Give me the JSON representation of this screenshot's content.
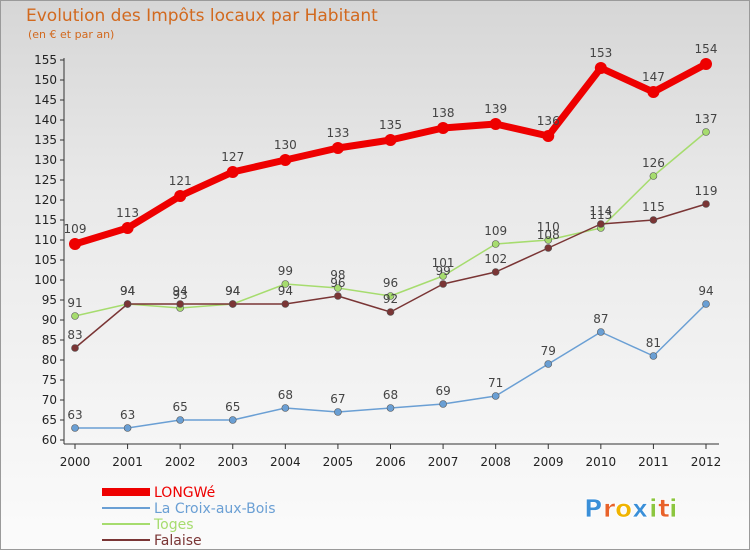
{
  "chart_data": {
    "type": "line",
    "title": "Evolution des Impôts locaux par Habitant",
    "subtitle": "(en € et par an)",
    "x": [
      "2000",
      "2001",
      "2002",
      "2003",
      "2004",
      "2005",
      "2006",
      "2007",
      "2008",
      "2009",
      "2010",
      "2011",
      "2012"
    ],
    "ylim": [
      60,
      155
    ],
    "yticks": [
      60,
      65,
      70,
      75,
      80,
      85,
      90,
      95,
      100,
      105,
      110,
      115,
      120,
      125,
      130,
      135,
      140,
      145,
      150,
      155
    ],
    "grid": false,
    "legend_position": "bottom-left",
    "series": [
      {
        "name": "LONGWé",
        "color": "#ee0000",
        "values": [
          109,
          113,
          121,
          127,
          130,
          133,
          135,
          138,
          139,
          136,
          153,
          147,
          154
        ]
      },
      {
        "name": "La Croix-aux-Bois",
        "color": "#6a9fd4",
        "values": [
          63,
          63,
          65,
          65,
          68,
          67,
          68,
          69,
          71,
          79,
          87,
          81,
          94
        ]
      },
      {
        "name": "Toges",
        "color": "#a6dc6e",
        "values": [
          91,
          94,
          93,
          94,
          99,
          98,
          96,
          101,
          109,
          110,
          113,
          126,
          137
        ]
      },
      {
        "name": "Falaise",
        "color": "#7a3535",
        "values": [
          83,
          94,
          94,
          94,
          94,
          96,
          92,
          99,
          102,
          108,
          114,
          115,
          119
        ]
      }
    ]
  },
  "logo": {
    "letters": [
      "P",
      "r",
      "o",
      "x",
      "i",
      "t",
      "i"
    ],
    "colors": [
      "#3a8fd8",
      "#e8622a",
      "#f0b400",
      "#3a8fd8",
      "#8cc63f",
      "#e8622a",
      "#8cc63f"
    ]
  }
}
